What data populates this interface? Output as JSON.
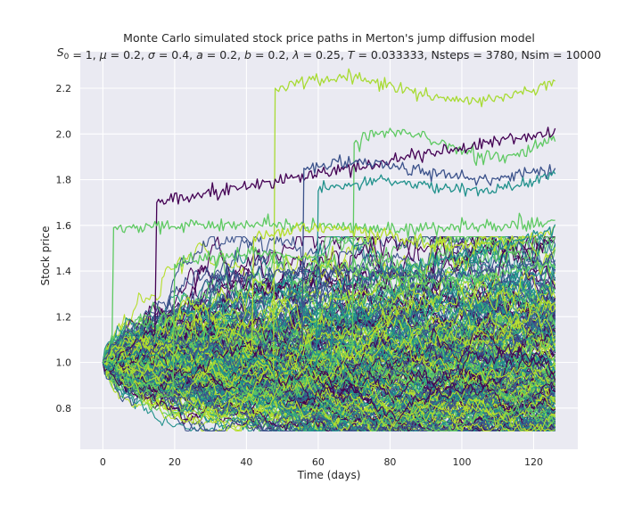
{
  "chart_data": {
    "type": "line",
    "title": "Monte Carlo simulated stock price paths in Merton's jump diffusion model",
    "subtitle_parts": [
      {
        "t": "S",
        "style": "italic"
      },
      {
        "t": "0",
        "style": "sub"
      },
      {
        "t": " = 1, ",
        "style": "normal"
      },
      {
        "t": "μ",
        "style": "italic"
      },
      {
        "t": " = 0.2, ",
        "style": "normal"
      },
      {
        "t": "σ",
        "style": "italic"
      },
      {
        "t": " = 0.4, ",
        "style": "normal"
      },
      {
        "t": "a",
        "style": "italic"
      },
      {
        "t": " = 0.2, ",
        "style": "normal"
      },
      {
        "t": "b",
        "style": "italic"
      },
      {
        "t": " = 0.2, ",
        "style": "normal"
      },
      {
        "t": "λ",
        "style": "italic"
      },
      {
        "t": " = 0.25, ",
        "style": "normal"
      },
      {
        "t": "T",
        "style": "italic"
      },
      {
        "t": " = 0.033333, Nsteps = 3780, Nsim = 10000",
        "style": "normal"
      }
    ],
    "xlabel": "Time (days)",
    "ylabel": "Stock price",
    "xlim": [
      -6.3,
      132.3
    ],
    "ylim": [
      0.62,
      2.36
    ],
    "xticks": [
      0,
      20,
      40,
      60,
      80,
      100,
      120
    ],
    "yticks": [
      0.8,
      1.0,
      1.2,
      1.4,
      1.6,
      1.8,
      2.0,
      2.2
    ],
    "grid": true,
    "background": "#eaeaf2",
    "grid_color": "#ffffff",
    "colormap": "viridis",
    "colormap_stops": [
      "#440154",
      "#3b528b",
      "#21918c",
      "#5ec962",
      "#b5de2b"
    ],
    "x_end": 126,
    "start_value": 1.0,
    "num_paths_drawn": 260,
    "highlight_paths": [
      {
        "jump_day": 48,
        "jump_level": 2.2,
        "end": 2.19,
        "peak": 2.28,
        "color": "#a8db34"
      },
      {
        "jump_day": 70,
        "jump_level": 1.96,
        "end": 1.95,
        "peak": 2.06,
        "color": "#5ec962"
      },
      {
        "jump_day": 15,
        "jump_level": 1.7,
        "end": 2.01,
        "peak": 2.01,
        "color": "#440154"
      },
      {
        "jump_day": 3,
        "jump_level": 1.59,
        "end": 1.6,
        "peak": 1.62,
        "color": "#5ec962"
      },
      {
        "jump_day": 56,
        "jump_level": 1.85,
        "end": 1.83,
        "peak": 1.89,
        "color": "#3b528b"
      },
      {
        "jump_day": 60,
        "jump_level": 1.75,
        "end": 1.8,
        "peak": 1.86,
        "color": "#21918c"
      },
      {
        "jump_day": 42,
        "jump_level": 1.55,
        "end": 1.55,
        "peak": 1.63,
        "color": "#b5de2b"
      },
      {
        "jump_day": 64,
        "jump_level": 1.33,
        "end": 1.58,
        "peak": 1.6,
        "color": "#21918c"
      },
      {
        "jump_day": 30,
        "jump_level": 1.36,
        "end": 1.43,
        "peak": 1.48,
        "color": "#3b528b"
      },
      {
        "jump_day": 20,
        "jump_level": 1.43,
        "end": 1.4,
        "peak": 1.5,
        "color": "#5ec962"
      }
    ]
  }
}
